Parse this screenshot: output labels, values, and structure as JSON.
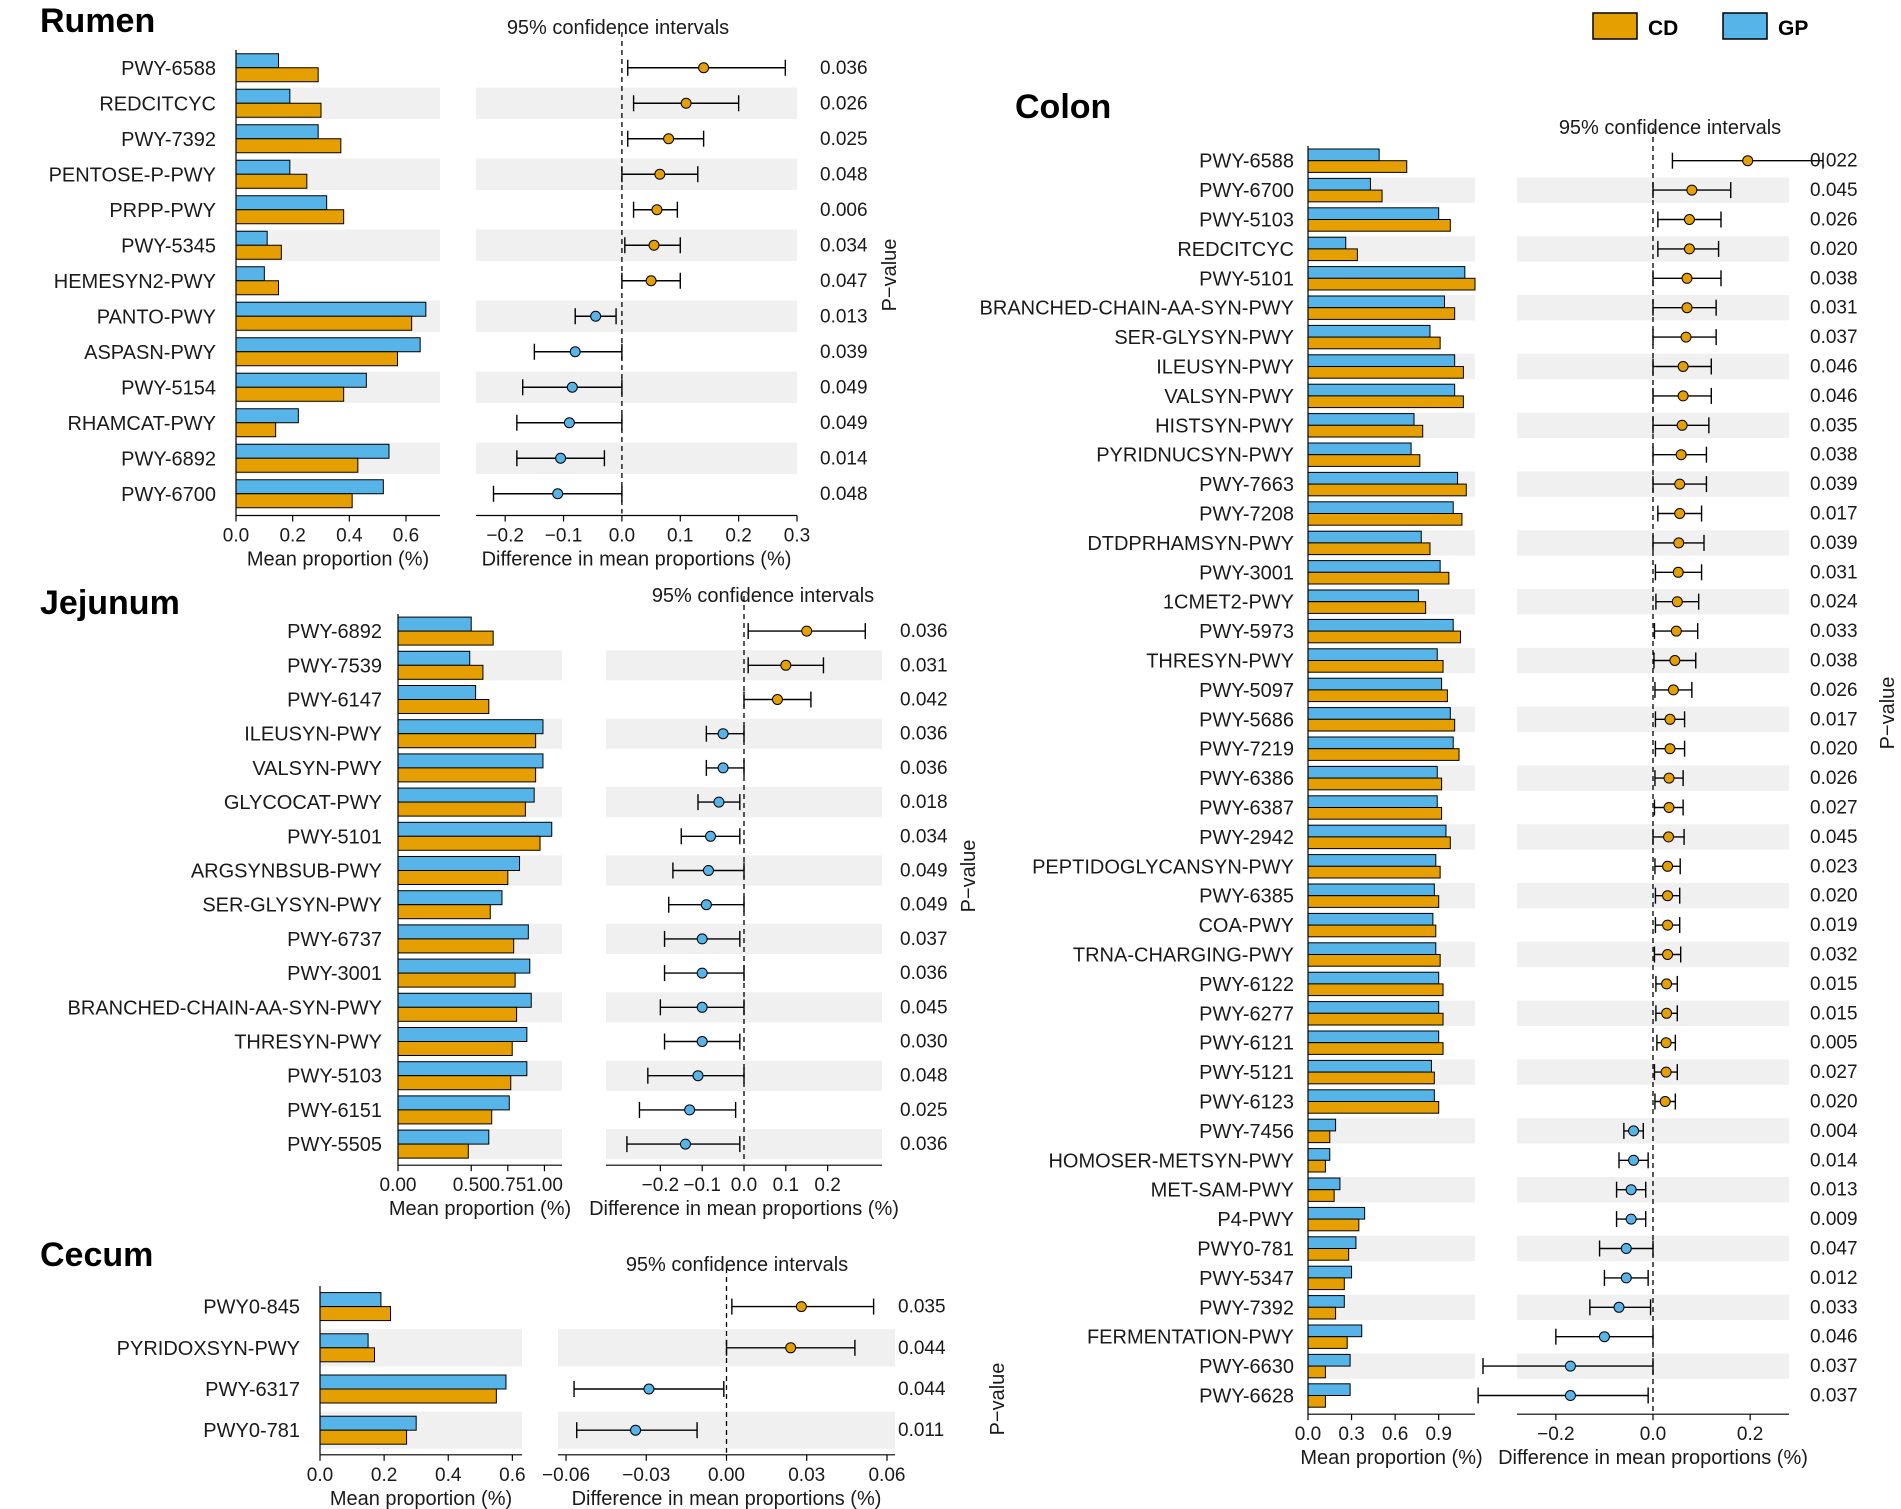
{
  "legend": {
    "title_items": [
      {
        "name": "CD",
        "color": "#E69F00"
      },
      {
        "name": "GP",
        "color": "#56B4E9"
      }
    ]
  },
  "labels": {
    "ci": "95% confidence intervals",
    "mean_axis": "Mean proportion (%)",
    "diff_axis": "Difference in mean proportions (%)",
    "pvalue": "P−value"
  },
  "chart_data": [
    {
      "type": "bar",
      "title": "Rumen",
      "mean_ticks": [
        "0.0",
        "0.2",
        "0.4",
        "0.6"
      ],
      "mean_tick_values": [
        0,
        0.2,
        0.4,
        0.6
      ],
      "mean_xlim": [
        0,
        0.72
      ],
      "diff_ticks": [
        "−0.2",
        "−0.1",
        "0.0",
        "0.1",
        "0.2",
        "0.3"
      ],
      "diff_tick_values": [
        -0.2,
        -0.1,
        0,
        0.1,
        0.2,
        0.3
      ],
      "diff_xlim": [
        -0.25,
        0.3
      ],
      "pathways": [
        {
          "name": "PWY-6588",
          "cd": 0.29,
          "gp": 0.15,
          "diff": 0.14,
          "lo": 0.01,
          "hi": 0.28,
          "p": "0.036"
        },
        {
          "name": "REDCITCYC",
          "cd": 0.3,
          "gp": 0.19,
          "diff": 0.11,
          "lo": 0.02,
          "hi": 0.2,
          "p": "0.026"
        },
        {
          "name": "PWY-7392",
          "cd": 0.37,
          "gp": 0.29,
          "diff": 0.08,
          "lo": 0.01,
          "hi": 0.14,
          "p": "0.025"
        },
        {
          "name": "PENTOSE-P-PWY",
          "cd": 0.25,
          "gp": 0.19,
          "diff": 0.065,
          "lo": 0.0,
          "hi": 0.13,
          "p": "0.048"
        },
        {
          "name": "PRPP-PWY",
          "cd": 0.38,
          "gp": 0.32,
          "diff": 0.06,
          "lo": 0.02,
          "hi": 0.095,
          "p": "0.006"
        },
        {
          "name": "PWY-5345",
          "cd": 0.16,
          "gp": 0.11,
          "diff": 0.055,
          "lo": 0.005,
          "hi": 0.1,
          "p": "0.034"
        },
        {
          "name": "HEMESYN2-PWY",
          "cd": 0.15,
          "gp": 0.1,
          "diff": 0.05,
          "lo": 0.0,
          "hi": 0.1,
          "p": "0.047"
        },
        {
          "name": "PANTO-PWY",
          "cd": 0.62,
          "gp": 0.67,
          "diff": -0.045,
          "lo": -0.08,
          "hi": -0.01,
          "p": "0.013"
        },
        {
          "name": "ASPASN-PWY",
          "cd": 0.57,
          "gp": 0.65,
          "diff": -0.08,
          "lo": -0.15,
          "hi": 0.0,
          "p": "0.039"
        },
        {
          "name": "PWY-5154",
          "cd": 0.38,
          "gp": 0.46,
          "diff": -0.085,
          "lo": -0.17,
          "hi": 0.0,
          "p": "0.049"
        },
        {
          "name": "RHAMCAT-PWY",
          "cd": 0.14,
          "gp": 0.22,
          "diff": -0.09,
          "lo": -0.18,
          "hi": 0.0,
          "p": "0.049"
        },
        {
          "name": "PWY-6892",
          "cd": 0.43,
          "gp": 0.54,
          "diff": -0.105,
          "lo": -0.18,
          "hi": -0.03,
          "p": "0.014"
        },
        {
          "name": "PWY-6700",
          "cd": 0.41,
          "gp": 0.52,
          "diff": -0.11,
          "lo": -0.22,
          "hi": 0.0,
          "p": "0.048"
        }
      ]
    },
    {
      "type": "bar",
      "title": "Jejunum",
      "mean_ticks": [
        "0.00",
        "0.50",
        "0.75",
        "1.00"
      ],
      "mean_tick_values": [
        0,
        0.5,
        0.75,
        1.0
      ],
      "mean_xlim": [
        0,
        1.12
      ],
      "diff_ticks": [
        "−0.2",
        "−0.1",
        "0.0",
        "0.1",
        "0.2"
      ],
      "diff_tick_values": [
        -0.2,
        -0.1,
        0,
        0.1,
        0.2
      ],
      "diff_xlim": [
        -0.33,
        0.33
      ],
      "pathways": [
        {
          "name": "PWY-6892",
          "cd": 0.65,
          "gp": 0.5,
          "diff": 0.15,
          "lo": 0.01,
          "hi": 0.29,
          "p": "0.036"
        },
        {
          "name": "PWY-7539",
          "cd": 0.58,
          "gp": 0.49,
          "diff": 0.1,
          "lo": 0.01,
          "hi": 0.19,
          "p": "0.031"
        },
        {
          "name": "PWY-6147",
          "cd": 0.62,
          "gp": 0.53,
          "diff": 0.08,
          "lo": 0.0,
          "hi": 0.16,
          "p": "0.042"
        },
        {
          "name": "ILEUSYN-PWY",
          "cd": 0.94,
          "gp": 0.99,
          "diff": -0.05,
          "lo": -0.09,
          "hi": 0.0,
          "p": "0.036"
        },
        {
          "name": "VALSYN-PWY",
          "cd": 0.94,
          "gp": 0.99,
          "diff": -0.05,
          "lo": -0.09,
          "hi": 0.0,
          "p": "0.036"
        },
        {
          "name": "GLYCOCAT-PWY",
          "cd": 0.87,
          "gp": 0.93,
          "diff": -0.06,
          "lo": -0.11,
          "hi": -0.01,
          "p": "0.018"
        },
        {
          "name": "PWY-5101",
          "cd": 0.97,
          "gp": 1.05,
          "diff": -0.08,
          "lo": -0.15,
          "hi": -0.01,
          "p": "0.034"
        },
        {
          "name": "ARGSYNBSUB-PWY",
          "cd": 0.75,
          "gp": 0.83,
          "diff": -0.085,
          "lo": -0.17,
          "hi": 0.0,
          "p": "0.049"
        },
        {
          "name": "SER-GLYSYN-PWY",
          "cd": 0.63,
          "gp": 0.71,
          "diff": -0.09,
          "lo": -0.18,
          "hi": 0.0,
          "p": "0.049"
        },
        {
          "name": "PWY-6737",
          "cd": 0.79,
          "gp": 0.89,
          "diff": -0.1,
          "lo": -0.19,
          "hi": -0.01,
          "p": "0.037"
        },
        {
          "name": "PWY-3001",
          "cd": 0.8,
          "gp": 0.9,
          "diff": -0.1,
          "lo": -0.19,
          "hi": 0.0,
          "p": "0.036"
        },
        {
          "name": "BRANCHED-CHAIN-AA-SYN-PWY",
          "cd": 0.81,
          "gp": 0.91,
          "diff": -0.1,
          "lo": -0.2,
          "hi": 0.0,
          "p": "0.045"
        },
        {
          "name": "THRESYN-PWY",
          "cd": 0.78,
          "gp": 0.88,
          "diff": -0.1,
          "lo": -0.19,
          "hi": -0.01,
          "p": "0.030"
        },
        {
          "name": "PWY-5103",
          "cd": 0.77,
          "gp": 0.88,
          "diff": -0.11,
          "lo": -0.23,
          "hi": 0.0,
          "p": "0.048"
        },
        {
          "name": "PWY-6151",
          "cd": 0.64,
          "gp": 0.76,
          "diff": -0.13,
          "lo": -0.25,
          "hi": -0.02,
          "p": "0.025"
        },
        {
          "name": "PWY-5505",
          "cd": 0.48,
          "gp": 0.62,
          "diff": -0.14,
          "lo": -0.28,
          "hi": -0.01,
          "p": "0.036"
        }
      ]
    },
    {
      "type": "bar",
      "title": "Cecum",
      "mean_ticks": [
        "0.0",
        "0.2",
        "0.4",
        "0.6"
      ],
      "mean_tick_values": [
        0,
        0.2,
        0.4,
        0.6
      ],
      "mean_xlim": [
        0,
        0.63
      ],
      "diff_ticks": [
        "−0.06",
        "−0.03",
        "0.00",
        "0.03",
        "0.06"
      ],
      "diff_tick_values": [
        -0.06,
        -0.03,
        0,
        0.03,
        0.06
      ],
      "diff_xlim": [
        -0.063,
        0.063
      ],
      "pathways": [
        {
          "name": "PWY0-845",
          "cd": 0.22,
          "gp": 0.19,
          "diff": 0.028,
          "lo": 0.002,
          "hi": 0.055,
          "p": "0.035"
        },
        {
          "name": "PYRIDOXSYN-PWY",
          "cd": 0.17,
          "gp": 0.15,
          "diff": 0.024,
          "lo": 0.0,
          "hi": 0.048,
          "p": "0.044"
        },
        {
          "name": "PWY-6317",
          "cd": 0.55,
          "gp": 0.58,
          "diff": -0.029,
          "lo": -0.057,
          "hi": -0.001,
          "p": "0.044"
        },
        {
          "name": "PWY0-781",
          "cd": 0.27,
          "gp": 0.3,
          "diff": -0.034,
          "lo": -0.056,
          "hi": -0.011,
          "p": "0.011"
        }
      ]
    },
    {
      "type": "bar",
      "title": "Colon",
      "mean_ticks": [
        "0.0",
        "0.3",
        "0.6",
        "0.9"
      ],
      "mean_tick_values": [
        0,
        0.3,
        0.6,
        0.9
      ],
      "mean_xlim": [
        0,
        1.15
      ],
      "diff_ticks": [
        "−0.2",
        "0.0",
        "0.2"
      ],
      "diff_tick_values": [
        -0.2,
        0,
        0.2
      ],
      "diff_xlim": [
        -0.28,
        0.28
      ],
      "pathways": [
        {
          "name": "PWY-6588",
          "cd": 0.68,
          "gp": 0.49,
          "diff": 0.195,
          "lo": 0.04,
          "hi": 0.35,
          "p": "0.022"
        },
        {
          "name": "PWY-6700",
          "cd": 0.51,
          "gp": 0.43,
          "diff": 0.08,
          "lo": 0.0,
          "hi": 0.16,
          "p": "0.045"
        },
        {
          "name": "PWY-5103",
          "cd": 0.98,
          "gp": 0.9,
          "diff": 0.075,
          "lo": 0.01,
          "hi": 0.14,
          "p": "0.026"
        },
        {
          "name": "REDCITCYC",
          "cd": 0.34,
          "gp": 0.26,
          "diff": 0.075,
          "lo": 0.01,
          "hi": 0.135,
          "p": "0.020"
        },
        {
          "name": "PWY-5101",
          "cd": 1.15,
          "gp": 1.08,
          "diff": 0.07,
          "lo": 0.0,
          "hi": 0.14,
          "p": "0.038"
        },
        {
          "name": "BRANCHED-CHAIN-AA-SYN-PWY",
          "cd": 1.01,
          "gp": 0.94,
          "diff": 0.07,
          "lo": 0.0,
          "hi": 0.13,
          "p": "0.031"
        },
        {
          "name": "SER-GLYSYN-PWY",
          "cd": 0.91,
          "gp": 0.84,
          "diff": 0.068,
          "lo": 0.0,
          "hi": 0.13,
          "p": "0.037"
        },
        {
          "name": "ILEUSYN-PWY",
          "cd": 1.07,
          "gp": 1.01,
          "diff": 0.062,
          "lo": 0.0,
          "hi": 0.12,
          "p": "0.046"
        },
        {
          "name": "VALSYN-PWY",
          "cd": 1.07,
          "gp": 1.01,
          "diff": 0.062,
          "lo": 0.0,
          "hi": 0.12,
          "p": "0.046"
        },
        {
          "name": "HISTSYN-PWY",
          "cd": 0.79,
          "gp": 0.73,
          "diff": 0.06,
          "lo": 0.0,
          "hi": 0.115,
          "p": "0.035"
        },
        {
          "name": "PYRIDNUCSYN-PWY",
          "cd": 0.77,
          "gp": 0.71,
          "diff": 0.058,
          "lo": 0.0,
          "hi": 0.11,
          "p": "0.038"
        },
        {
          "name": "PWY-7663",
          "cd": 1.09,
          "gp": 1.03,
          "diff": 0.055,
          "lo": 0.0,
          "hi": 0.11,
          "p": "0.039"
        },
        {
          "name": "PWY-7208",
          "cd": 1.06,
          "gp": 1.0,
          "diff": 0.055,
          "lo": 0.01,
          "hi": 0.1,
          "p": "0.017"
        },
        {
          "name": "DTDPRHAMSYN-PWY",
          "cd": 0.84,
          "gp": 0.78,
          "diff": 0.053,
          "lo": 0.0,
          "hi": 0.105,
          "p": "0.039"
        },
        {
          "name": "PWY-3001",
          "cd": 0.97,
          "gp": 0.91,
          "diff": 0.052,
          "lo": 0.005,
          "hi": 0.1,
          "p": "0.031"
        },
        {
          "name": "1CMET2-PWY",
          "cd": 0.81,
          "gp": 0.76,
          "diff": 0.05,
          "lo": 0.006,
          "hi": 0.094,
          "p": "0.024"
        },
        {
          "name": "PWY-5973",
          "cd": 1.05,
          "gp": 1.0,
          "diff": 0.048,
          "lo": 0.003,
          "hi": 0.092,
          "p": "0.033"
        },
        {
          "name": "THRESYN-PWY",
          "cd": 0.93,
          "gp": 0.89,
          "diff": 0.045,
          "lo": 0.002,
          "hi": 0.088,
          "p": "0.038"
        },
        {
          "name": "PWY-5097",
          "cd": 0.96,
          "gp": 0.92,
          "diff": 0.042,
          "lo": 0.004,
          "hi": 0.08,
          "p": "0.026"
        },
        {
          "name": "PWY-5686",
          "cd": 1.01,
          "gp": 0.98,
          "diff": 0.035,
          "lo": 0.005,
          "hi": 0.065,
          "p": "0.017"
        },
        {
          "name": "PWY-7219",
          "cd": 1.04,
          "gp": 1.0,
          "diff": 0.035,
          "lo": 0.005,
          "hi": 0.065,
          "p": "0.020"
        },
        {
          "name": "PWY-6386",
          "cd": 0.92,
          "gp": 0.89,
          "diff": 0.033,
          "lo": 0.004,
          "hi": 0.062,
          "p": "0.026"
        },
        {
          "name": "PWY-6387",
          "cd": 0.92,
          "gp": 0.89,
          "diff": 0.033,
          "lo": 0.003,
          "hi": 0.062,
          "p": "0.027"
        },
        {
          "name": "PWY-2942",
          "cd": 0.98,
          "gp": 0.95,
          "diff": 0.032,
          "lo": 0.0,
          "hi": 0.064,
          "p": "0.045"
        },
        {
          "name": "PEPTIDOGLYCANSYN-PWY",
          "cd": 0.91,
          "gp": 0.88,
          "diff": 0.03,
          "lo": 0.004,
          "hi": 0.056,
          "p": "0.023"
        },
        {
          "name": "PWY-6385",
          "cd": 0.9,
          "gp": 0.87,
          "diff": 0.03,
          "lo": 0.005,
          "hi": 0.055,
          "p": "0.020"
        },
        {
          "name": "COA-PWY",
          "cd": 0.88,
          "gp": 0.86,
          "diff": 0.03,
          "lo": 0.005,
          "hi": 0.055,
          "p": "0.019"
        },
        {
          "name": "TRNA-CHARGING-PWY",
          "cd": 0.91,
          "gp": 0.88,
          "diff": 0.03,
          "lo": 0.003,
          "hi": 0.057,
          "p": "0.032"
        },
        {
          "name": "PWY-6122",
          "cd": 0.93,
          "gp": 0.9,
          "diff": 0.028,
          "lo": 0.006,
          "hi": 0.05,
          "p": "0.015"
        },
        {
          "name": "PWY-6277",
          "cd": 0.93,
          "gp": 0.9,
          "diff": 0.028,
          "lo": 0.006,
          "hi": 0.05,
          "p": "0.015"
        },
        {
          "name": "PWY-6121",
          "cd": 0.93,
          "gp": 0.9,
          "diff": 0.027,
          "lo": 0.008,
          "hi": 0.046,
          "p": "0.005"
        },
        {
          "name": "PWY-5121",
          "cd": 0.87,
          "gp": 0.85,
          "diff": 0.027,
          "lo": 0.003,
          "hi": 0.05,
          "p": "0.027"
        },
        {
          "name": "PWY-6123",
          "cd": 0.9,
          "gp": 0.87,
          "diff": 0.025,
          "lo": 0.004,
          "hi": 0.046,
          "p": "0.020"
        },
        {
          "name": "PWY-7456",
          "cd": 0.15,
          "gp": 0.19,
          "diff": -0.04,
          "lo": -0.06,
          "hi": -0.02,
          "p": "0.004"
        },
        {
          "name": "HOMOSER-METSYN-PWY",
          "cd": 0.12,
          "gp": 0.15,
          "diff": -0.04,
          "lo": -0.07,
          "hi": -0.01,
          "p": "0.014"
        },
        {
          "name": "MET-SAM-PWY",
          "cd": 0.18,
          "gp": 0.22,
          "diff": -0.045,
          "lo": -0.075,
          "hi": -0.015,
          "p": "0.013"
        },
        {
          "name": "P4-PWY",
          "cd": 0.35,
          "gp": 0.39,
          "diff": -0.045,
          "lo": -0.075,
          "hi": -0.015,
          "p": "0.009"
        },
        {
          "name": "PWY0-781",
          "cd": 0.28,
          "gp": 0.33,
          "diff": -0.055,
          "lo": -0.11,
          "hi": 0.0,
          "p": "0.047"
        },
        {
          "name": "PWY-5347",
          "cd": 0.25,
          "gp": 0.3,
          "diff": -0.055,
          "lo": -0.1,
          "hi": -0.01,
          "p": "0.012"
        },
        {
          "name": "PWY-7392",
          "cd": 0.19,
          "gp": 0.25,
          "diff": -0.07,
          "lo": -0.13,
          "hi": -0.005,
          "p": "0.033"
        },
        {
          "name": "FERMENTATION-PWY",
          "cd": 0.27,
          "gp": 0.37,
          "diff": -0.1,
          "lo": -0.2,
          "hi": 0.0,
          "p": "0.046"
        },
        {
          "name": "PWY-6630",
          "cd": 0.12,
          "gp": 0.29,
          "diff": -0.17,
          "lo": -0.35,
          "hi": 0.0,
          "p": "0.037"
        },
        {
          "name": "PWY-6628",
          "cd": 0.12,
          "gp": 0.29,
          "diff": -0.17,
          "lo": -0.36,
          "hi": -0.01,
          "p": "0.037"
        }
      ]
    }
  ]
}
